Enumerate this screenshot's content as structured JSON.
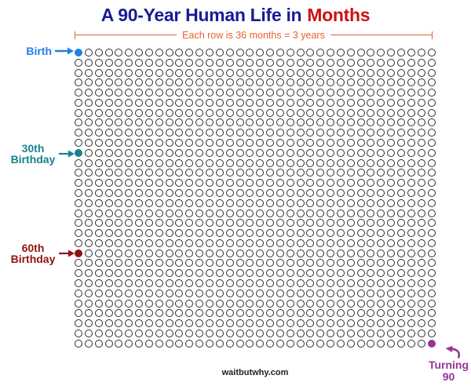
{
  "title": {
    "prefix": "A 90-Year Human Life in",
    "highlight": "Months",
    "prefix_color": "#1B1B96",
    "highlight_color": "#CC1111"
  },
  "bracket": {
    "label": "Each row is 36 months = 3 years",
    "color": "#E8622B"
  },
  "footer": {
    "site": "waitbutwhy.com"
  },
  "chart_data": {
    "type": "waffle",
    "title": "A 90-Year Human Life in Months",
    "rows": 30,
    "columns": 36,
    "total_units": 1080,
    "row_label": "Each row is 36 months = 3 years",
    "circle_outline_color": "#2D2D2D",
    "annotations": [
      {
        "id": "birth",
        "label": "Birth",
        "row": 1,
        "col": 1,
        "month": 1,
        "color": "#1F80E8"
      },
      {
        "id": "30th-birthday",
        "label": "30th Birthday",
        "row": 11,
        "col": 1,
        "month": 361,
        "color": "#17838A"
      },
      {
        "id": "60th-birthday",
        "label": "60th Birthday",
        "row": 21,
        "col": 1,
        "month": 721,
        "color": "#8E1313"
      },
      {
        "id": "turning-90",
        "label": "Turning 90",
        "row": 30,
        "col": 36,
        "month": 1080,
        "color": "#983398"
      }
    ]
  }
}
